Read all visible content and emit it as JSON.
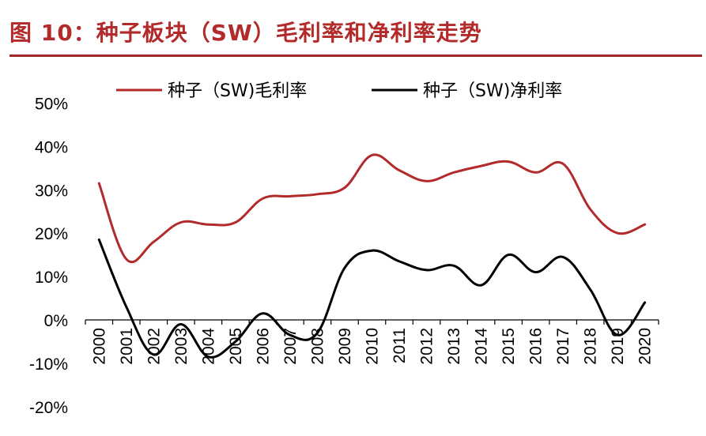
{
  "header": {
    "title": "图 10：种子板块（SW）毛利率和净利率走势"
  },
  "chart_data": {
    "type": "line",
    "title": "图 10：种子板块（SW）毛利率和净利率走势",
    "xlabel": "",
    "ylabel": "",
    "x": [
      "2000",
      "2001",
      "2002",
      "2003",
      "2004",
      "2005",
      "2006",
      "2007",
      "2008",
      "2009",
      "2010",
      "2011",
      "2012",
      "2013",
      "2014",
      "2015",
      "2016",
      "2017",
      "2018",
      "2019",
      "2020"
    ],
    "ylim": [
      -20,
      50
    ],
    "yticks": [
      "50%",
      "40%",
      "30%",
      "20%",
      "10%",
      "0%",
      "-10%",
      "-20%"
    ],
    "ytick_values": [
      50,
      40,
      30,
      20,
      10,
      0,
      -10,
      -20
    ],
    "legend_position": "top",
    "grid": false,
    "series": [
      {
        "name": "种子（SW)毛利率",
        "color": "#b22a2a",
        "values": [
          31.5,
          14,
          18,
          22.5,
          22,
          22.5,
          28,
          28.5,
          29,
          30.5,
          38,
          34.5,
          32,
          34,
          35.5,
          36.5,
          34,
          36,
          25.5,
          20,
          22
        ]
      },
      {
        "name": "种子（SW)净利率",
        "color": "#000000",
        "values": [
          18.5,
          3,
          -8,
          -1,
          -8.5,
          -5,
          1.5,
          -3.5,
          -3,
          12,
          16,
          13.5,
          11.5,
          12.5,
          8,
          15,
          11,
          14.5,
          7,
          -3.5,
          4
        ]
      }
    ]
  }
}
